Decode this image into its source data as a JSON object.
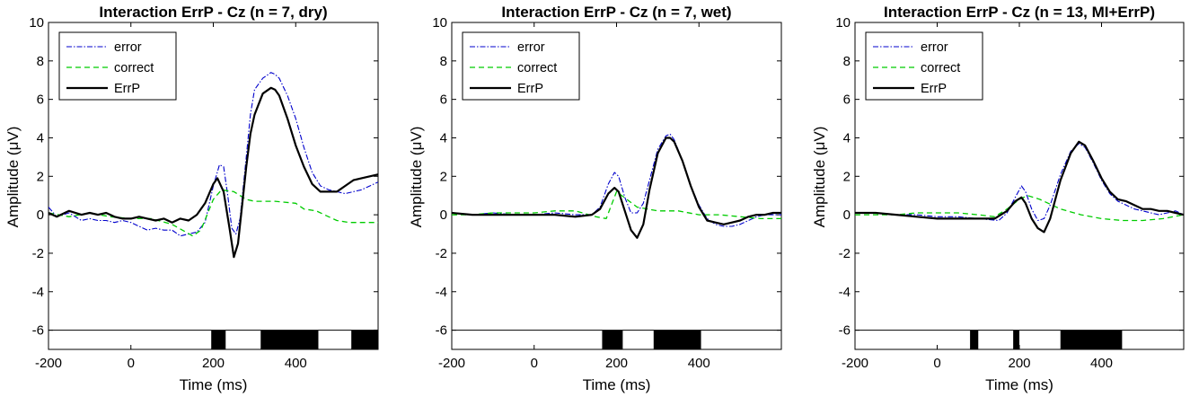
{
  "chart_data": [
    {
      "type": "line",
      "title": "Interaction ErrP - Cz (n = 7, dry)",
      "xlabel": "Time (ms)",
      "ylabel": "Amplitude (μV)",
      "xlim": [
        -200,
        600
      ],
      "ylim": [
        -7,
        10
      ],
      "xticks": [
        -200,
        0,
        200,
        400
      ],
      "yticks": [
        -6,
        -4,
        -2,
        0,
        2,
        4,
        6,
        8,
        10
      ],
      "legend_position": "top-left",
      "significance_band_y": -6,
      "significant_intervals": [
        [
          195,
          230
        ],
        [
          315,
          455
        ],
        [
          535,
          600
        ]
      ],
      "series": [
        {
          "name": "error",
          "color": "#0000cc",
          "style": "dashdot",
          "x": [
            -200,
            -180,
            -150,
            -120,
            -100,
            -80,
            -60,
            -40,
            -20,
            0,
            20,
            40,
            60,
            80,
            100,
            120,
            140,
            160,
            180,
            200,
            215,
            225,
            235,
            245,
            255,
            265,
            280,
            290,
            300,
            320,
            340,
            350,
            360,
            380,
            400,
            420,
            440,
            460,
            480,
            500,
            520,
            540,
            560,
            580,
            600
          ],
          "y": [
            0.4,
            -0.1,
            0.1,
            -0.3,
            -0.2,
            -0.3,
            -0.3,
            -0.4,
            -0.3,
            -0.4,
            -0.6,
            -0.8,
            -0.7,
            -0.8,
            -0.8,
            -1.1,
            -1.0,
            -0.9,
            -0.4,
            1.5,
            2.6,
            2.5,
            1.0,
            -0.7,
            -1.0,
            -0.2,
            3.0,
            5.2,
            6.5,
            7.1,
            7.4,
            7.3,
            7.1,
            6.2,
            5.0,
            3.5,
            2.2,
            1.5,
            1.3,
            1.2,
            1.1,
            1.2,
            1.3,
            1.5,
            1.7
          ]
        },
        {
          "name": "correct",
          "color": "#00cc00",
          "style": "dashed",
          "x": [
            -200,
            -150,
            -100,
            -50,
            0,
            50,
            100,
            150,
            170,
            200,
            220,
            250,
            280,
            300,
            350,
            400,
            420,
            450,
            480,
            500,
            530,
            560,
            600
          ],
          "y": [
            0.1,
            -0.1,
            0.1,
            -0.1,
            -0.2,
            -0.2,
            -0.5,
            -1.1,
            -0.8,
            0.8,
            1.3,
            1.2,
            0.8,
            0.7,
            0.7,
            0.6,
            0.3,
            0.2,
            -0.1,
            -0.3,
            -0.4,
            -0.4,
            -0.4
          ]
        },
        {
          "name": "ErrP",
          "color": "#000000",
          "style": "solid",
          "x": [
            -200,
            -180,
            -150,
            -120,
            -100,
            -80,
            -60,
            -40,
            -20,
            0,
            20,
            40,
            60,
            80,
            100,
            120,
            140,
            160,
            180,
            200,
            210,
            225,
            240,
            250,
            260,
            270,
            280,
            290,
            300,
            320,
            340,
            350,
            360,
            380,
            400,
            420,
            440,
            460,
            480,
            500,
            520,
            540,
            560,
            580,
            600
          ],
          "y": [
            0.1,
            -0.1,
            0.2,
            0.0,
            0.1,
            0.0,
            0.1,
            -0.1,
            -0.2,
            -0.2,
            -0.1,
            -0.2,
            -0.3,
            -0.2,
            -0.4,
            -0.2,
            -0.3,
            0.0,
            0.6,
            1.6,
            1.9,
            1.2,
            -0.8,
            -2.2,
            -1.5,
            0.5,
            2.5,
            4.2,
            5.2,
            6.3,
            6.6,
            6.5,
            6.2,
            5.0,
            3.6,
            2.5,
            1.6,
            1.2,
            1.2,
            1.2,
            1.5,
            1.8,
            1.9,
            2.0,
            2.1
          ]
        }
      ]
    },
    {
      "type": "line",
      "title": "Interaction ErrP - Cz (n = 7, wet)",
      "xlabel": "Time (ms)",
      "ylabel": "Amplitude (μV)",
      "xlim": [
        -200,
        600
      ],
      "ylim": [
        -7,
        10
      ],
      "xticks": [
        -200,
        0,
        200,
        400
      ],
      "yticks": [
        -6,
        -4,
        -2,
        0,
        2,
        4,
        6,
        8,
        10
      ],
      "legend_position": "top-left",
      "significance_band_y": -6,
      "significant_intervals": [
        [
          165,
          215
        ],
        [
          290,
          405
        ]
      ],
      "series": [
        {
          "name": "error",
          "color": "#0000cc",
          "style": "dashdot",
          "x": [
            -200,
            -150,
            -100,
            -50,
            0,
            50,
            100,
            140,
            160,
            180,
            195,
            205,
            220,
            235,
            250,
            265,
            280,
            300,
            320,
            330,
            340,
            360,
            380,
            400,
            420,
            440,
            460,
            480,
            500,
            520,
            540,
            560,
            580,
            600
          ],
          "y": [
            0.1,
            0.0,
            0.1,
            0.0,
            0.0,
            0.1,
            0.0,
            0.0,
            0.4,
            1.6,
            2.2,
            2.0,
            0.9,
            0.1,
            0.1,
            0.6,
            1.8,
            3.4,
            4.1,
            4.2,
            3.9,
            2.8,
            1.5,
            0.5,
            -0.2,
            -0.5,
            -0.6,
            -0.6,
            -0.5,
            -0.3,
            -0.1,
            0.0,
            0.0,
            0.0
          ]
        },
        {
          "name": "correct",
          "color": "#00cc00",
          "style": "dashed",
          "x": [
            -200,
            -150,
            -100,
            -50,
            0,
            50,
            100,
            150,
            175,
            200,
            225,
            250,
            300,
            350,
            400,
            450,
            500,
            550,
            600
          ],
          "y": [
            0.0,
            0.0,
            0.1,
            0.1,
            0.1,
            0.2,
            0.2,
            -0.1,
            -0.2,
            1.2,
            0.8,
            0.4,
            0.2,
            0.2,
            0.0,
            0.0,
            -0.1,
            -0.2,
            -0.2
          ]
        },
        {
          "name": "ErrP",
          "color": "#000000",
          "style": "solid",
          "x": [
            -200,
            -150,
            -100,
            -50,
            0,
            50,
            100,
            140,
            160,
            180,
            195,
            205,
            220,
            235,
            250,
            265,
            280,
            300,
            320,
            330,
            340,
            360,
            380,
            400,
            420,
            440,
            460,
            480,
            500,
            520,
            540,
            560,
            580,
            600
          ],
          "y": [
            0.1,
            0.0,
            0.0,
            0.0,
            0.0,
            0.0,
            -0.1,
            0.0,
            0.3,
            1.1,
            1.4,
            1.2,
            0.2,
            -0.8,
            -1.2,
            -0.5,
            1.3,
            3.2,
            4.0,
            4.0,
            3.8,
            2.8,
            1.5,
            0.4,
            -0.3,
            -0.4,
            -0.5,
            -0.4,
            -0.3,
            -0.1,
            0.0,
            0.0,
            0.1,
            0.1
          ]
        }
      ]
    },
    {
      "type": "line",
      "title": "Interaction ErrP - Cz (n = 13, MI+ErrP)",
      "xlabel": "Time (ms)",
      "ylabel": "Amplitude (μV)",
      "xlim": [
        -200,
        600
      ],
      "ylim": [
        -7,
        10
      ],
      "xticks": [
        -200,
        0,
        200,
        400
      ],
      "yticks": [
        -6,
        -4,
        -2,
        0,
        2,
        4,
        6,
        8,
        10
      ],
      "legend_position": "top-left",
      "significance_band_y": -6,
      "significant_intervals": [
        [
          80,
          100
        ],
        [
          185,
          200
        ],
        [
          300,
          450
        ]
      ],
      "series": [
        {
          "name": "error",
          "color": "#0000cc",
          "style": "dashdot",
          "x": [
            -200,
            -150,
            -100,
            -50,
            0,
            50,
            100,
            150,
            170,
            190,
            205,
            215,
            230,
            245,
            260,
            275,
            300,
            325,
            345,
            360,
            380,
            400,
            420,
            440,
            460,
            480,
            500,
            520,
            540,
            560,
            580,
            600
          ],
          "y": [
            0.1,
            0.1,
            0.0,
            0.0,
            -0.1,
            -0.1,
            -0.2,
            -0.3,
            0.1,
            0.9,
            1.5,
            1.2,
            0.3,
            -0.3,
            -0.2,
            0.5,
            2.1,
            3.3,
            3.7,
            3.5,
            2.7,
            1.8,
            1.1,
            0.7,
            0.5,
            0.3,
            0.2,
            0.1,
            0.0,
            0.1,
            0.2,
            0.0
          ]
        },
        {
          "name": "correct",
          "color": "#00cc00",
          "style": "dashed",
          "x": [
            -200,
            -150,
            -100,
            -50,
            0,
            50,
            100,
            140,
            170,
            200,
            220,
            250,
            280,
            300,
            350,
            400,
            450,
            500,
            550,
            600
          ],
          "y": [
            0.0,
            0.0,
            0.0,
            0.1,
            0.1,
            0.1,
            0.0,
            -0.1,
            0.3,
            0.8,
            1.0,
            0.8,
            0.5,
            0.3,
            0.0,
            -0.2,
            -0.3,
            -0.3,
            -0.2,
            0.0
          ]
        },
        {
          "name": "ErrP",
          "color": "#000000",
          "style": "solid",
          "x": [
            -200,
            -150,
            -100,
            -50,
            0,
            50,
            100,
            140,
            170,
            190,
            205,
            215,
            230,
            245,
            260,
            275,
            300,
            325,
            345,
            360,
            380,
            400,
            420,
            440,
            460,
            480,
            500,
            520,
            540,
            560,
            580,
            600
          ],
          "y": [
            0.1,
            0.1,
            0.0,
            -0.1,
            -0.2,
            -0.2,
            -0.2,
            -0.2,
            0.2,
            0.7,
            0.9,
            0.6,
            -0.2,
            -0.7,
            -0.9,
            -0.2,
            1.8,
            3.2,
            3.8,
            3.6,
            2.8,
            1.9,
            1.2,
            0.8,
            0.7,
            0.5,
            0.3,
            0.3,
            0.2,
            0.2,
            0.1,
            0.0
          ]
        }
      ]
    }
  ]
}
